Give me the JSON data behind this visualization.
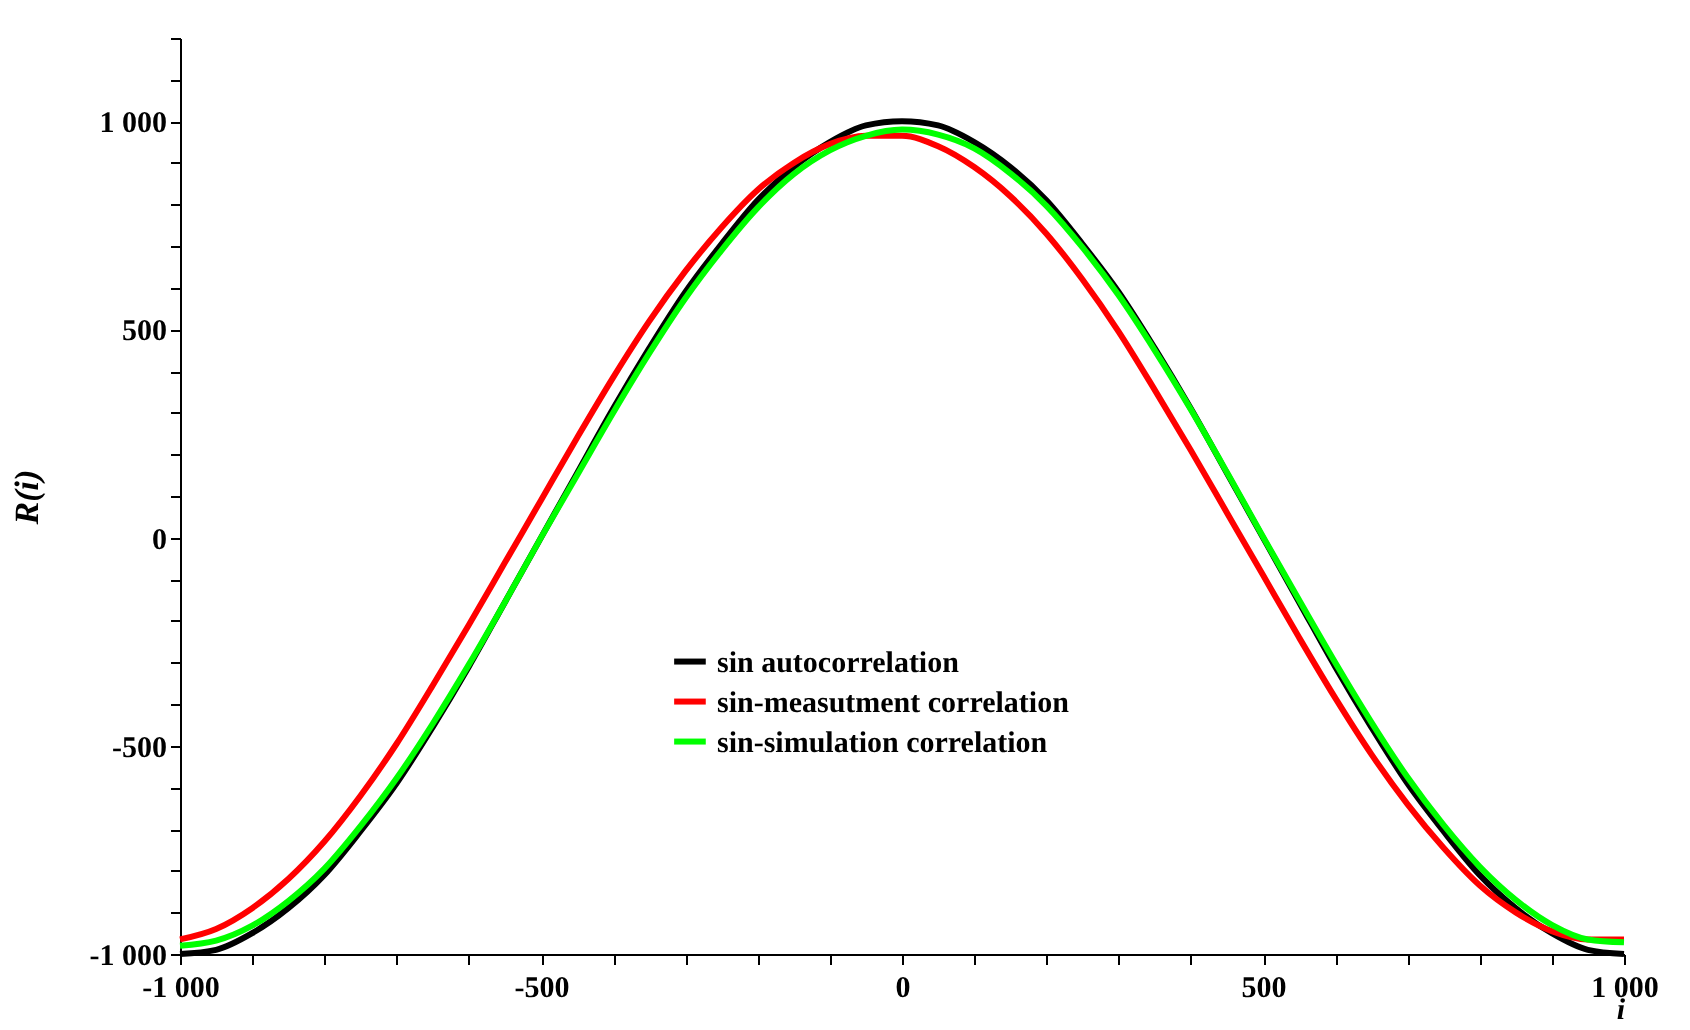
{
  "chart_data": {
    "type": "line",
    "xlabel": "i",
    "ylabel": "R(i)",
    "xlim": [
      -1000,
      1000
    ],
    "ylim": [
      -1000,
      1200
    ],
    "xticks": [
      {
        "value": -1000,
        "label": "-1 000"
      },
      {
        "value": -900,
        "label": null
      },
      {
        "value": -800,
        "label": null
      },
      {
        "value": -700,
        "label": null
      },
      {
        "value": -600,
        "label": null
      },
      -500,
      {
        "value": -400,
        "label": null
      },
      {
        "value": -300,
        "label": null
      },
      {
        "value": -200,
        "label": null
      },
      {
        "value": -100,
        "label": null
      },
      0,
      {
        "value": 100,
        "label": null
      },
      {
        "value": 200,
        "label": null
      },
      {
        "value": 300,
        "label": null
      },
      {
        "value": 400,
        "label": null
      },
      500,
      {
        "value": 600,
        "label": null
      },
      {
        "value": 700,
        "label": null
      },
      {
        "value": 800,
        "label": null
      },
      {
        "value": 900,
        "label": null
      },
      {
        "value": 1000,
        "label": "1 000"
      }
    ],
    "yticks": [
      {
        "value": -1000,
        "label": "-1 000"
      },
      {
        "value": -900,
        "label": null
      },
      {
        "value": -800,
        "label": null
      },
      {
        "value": -700,
        "label": null
      },
      {
        "value": -600,
        "label": null
      },
      -500,
      {
        "value": -400,
        "label": null
      },
      {
        "value": -300,
        "label": null
      },
      {
        "value": -200,
        "label": null
      },
      {
        "value": -100,
        "label": null
      },
      0,
      {
        "value": 100,
        "label": null
      },
      {
        "value": 200,
        "label": null
      },
      {
        "value": 300,
        "label": null
      },
      {
        "value": 400,
        "label": null
      },
      500,
      {
        "value": 600,
        "label": null
      },
      {
        "value": 700,
        "label": null
      },
      {
        "value": 800,
        "label": null
      },
      {
        "value": 900,
        "label": null
      },
      {
        "value": 1000,
        "label": "1 000"
      },
      {
        "value": 1100,
        "label": null
      },
      {
        "value": 1200,
        "label": null
      }
    ],
    "x": [
      -1000,
      -950,
      -900,
      -850,
      -800,
      -750,
      -700,
      -650,
      -600,
      -550,
      -500,
      -450,
      -400,
      -350,
      -300,
      -250,
      -200,
      -150,
      -100,
      -50,
      0,
      50,
      100,
      150,
      200,
      250,
      300,
      350,
      400,
      450,
      500,
      550,
      600,
      650,
      700,
      750,
      800,
      850,
      900,
      950,
      1000
    ],
    "series": [
      {
        "name": "sin autocorrelation",
        "color": "#000000",
        "values": [
          -1000,
          -990,
          -950,
          -890,
          -810,
          -705,
          -590,
          -455,
          -310,
          -155,
          0,
          155,
          310,
          455,
          590,
          705,
          810,
          890,
          950,
          990,
          1000,
          990,
          950,
          890,
          810,
          705,
          590,
          455,
          310,
          155,
          0,
          -155,
          -310,
          -455,
          -590,
          -705,
          -810,
          -890,
          -950,
          -990,
          -1000
        ]
      },
      {
        "name": "sin-measutment correlation",
        "color": "#ff0000",
        "values": [
          -965,
          -940,
          -890,
          -820,
          -730,
          -620,
          -495,
          -355,
          -210,
          -60,
          90,
          240,
          385,
          520,
          640,
          745,
          835,
          900,
          945,
          965,
          965,
          940,
          890,
          820,
          730,
          620,
          495,
          355,
          210,
          60,
          -90,
          -240,
          -385,
          -520,
          -640,
          -745,
          -835,
          -900,
          -945,
          -965,
          -965
        ]
      },
      {
        "name": "sin-simulation correlation",
        "color": "#00ff00",
        "values": [
          -980,
          -968,
          -932,
          -873,
          -795,
          -693,
          -578,
          -447,
          -305,
          -155,
          0,
          150,
          300,
          443,
          575,
          690,
          792,
          873,
          930,
          965,
          980,
          968,
          935,
          875,
          797,
          697,
          582,
          450,
          308,
          157,
          2,
          -150,
          -300,
          -443,
          -575,
          -690,
          -790,
          -870,
          -930,
          -965,
          -972
        ]
      }
    ],
    "legend": "center",
    "grid": false
  }
}
